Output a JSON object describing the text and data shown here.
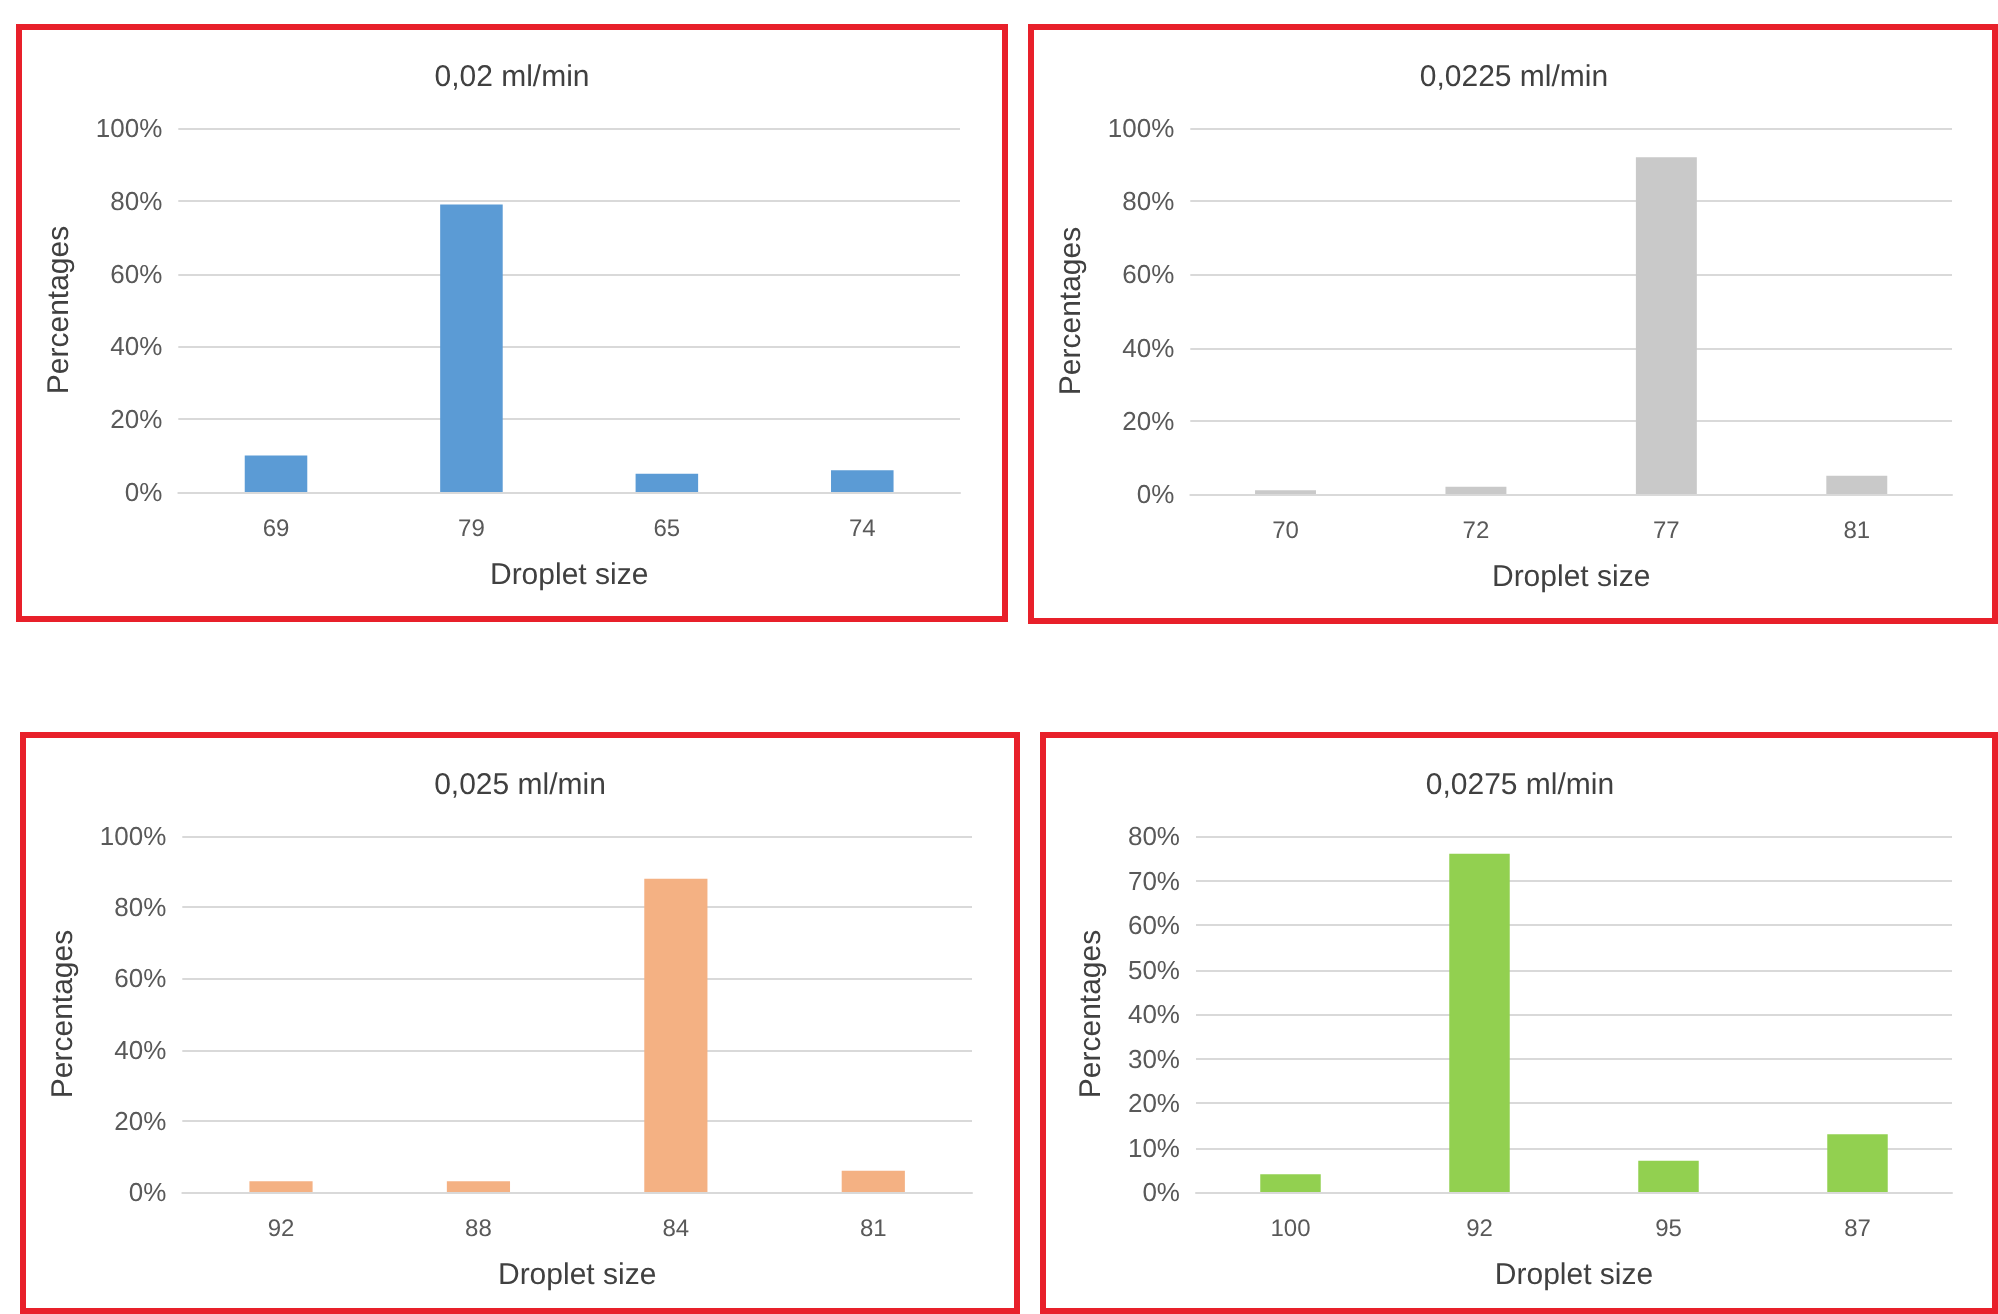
{
  "chart_data": [
    {
      "type": "bar",
      "title": "0,02 ml/min",
      "xlabel": "Droplet size",
      "ylabel": "Percentages",
      "categories": [
        "69",
        "79",
        "65",
        "74"
      ],
      "values": [
        10,
        79,
        5,
        6
      ],
      "color": "#5b9bd5",
      "ylim": [
        0,
        100
      ],
      "yticks": [
        {
          "value": 0,
          "label": "0%"
        },
        {
          "value": 20,
          "label": "20%"
        },
        {
          "value": 40,
          "label": "40%"
        },
        {
          "value": 60,
          "label": "60%"
        },
        {
          "value": 80,
          "label": "80%"
        },
        {
          "value": 100,
          "label": "100%"
        }
      ],
      "grid": "y"
    },
    {
      "type": "bar",
      "title": "0,0225 ml/min",
      "xlabel": "Droplet size",
      "ylabel": "Percentages",
      "categories": [
        "70",
        "72",
        "77",
        "81"
      ],
      "values": [
        1,
        2,
        92,
        5
      ],
      "color": "#c9c9c9",
      "ylim": [
        0,
        100
      ],
      "yticks": [
        {
          "value": 0,
          "label": "0%"
        },
        {
          "value": 20,
          "label": "20%"
        },
        {
          "value": 40,
          "label": "40%"
        },
        {
          "value": 60,
          "label": "60%"
        },
        {
          "value": 80,
          "label": "80%"
        },
        {
          "value": 100,
          "label": "100%"
        }
      ],
      "grid": "y"
    },
    {
      "type": "bar",
      "title": "0,025 ml/min",
      "xlabel": "Droplet size",
      "ylabel": "Percentages",
      "categories": [
        "92",
        "88",
        "84",
        "81"
      ],
      "values": [
        3,
        3,
        88,
        6
      ],
      "color": "#f4b183",
      "ylim": [
        0,
        100
      ],
      "yticks": [
        {
          "value": 0,
          "label": "0%"
        },
        {
          "value": 20,
          "label": "20%"
        },
        {
          "value": 40,
          "label": "40%"
        },
        {
          "value": 60,
          "label": "60%"
        },
        {
          "value": 80,
          "label": "80%"
        },
        {
          "value": 100,
          "label": "100%"
        }
      ],
      "grid": "y"
    },
    {
      "type": "bar",
      "title": "0,0275 ml/min",
      "xlabel": "Droplet size",
      "ylabel": "Percentages",
      "categories": [
        "100",
        "92",
        "95",
        "87"
      ],
      "values": [
        4,
        76,
        7,
        13
      ],
      "color": "#92d050",
      "ylim": [
        0,
        80
      ],
      "yticks": [
        {
          "value": 0,
          "label": "0%"
        },
        {
          "value": 10,
          "label": "10%"
        },
        {
          "value": 20,
          "label": "20%"
        },
        {
          "value": 30,
          "label": "30%"
        },
        {
          "value": 40,
          "label": "40%"
        },
        {
          "value": 50,
          "label": "50%"
        },
        {
          "value": 60,
          "label": "60%"
        },
        {
          "value": 70,
          "label": "70%"
        },
        {
          "value": 80,
          "label": "80%"
        }
      ],
      "grid": "y"
    }
  ]
}
